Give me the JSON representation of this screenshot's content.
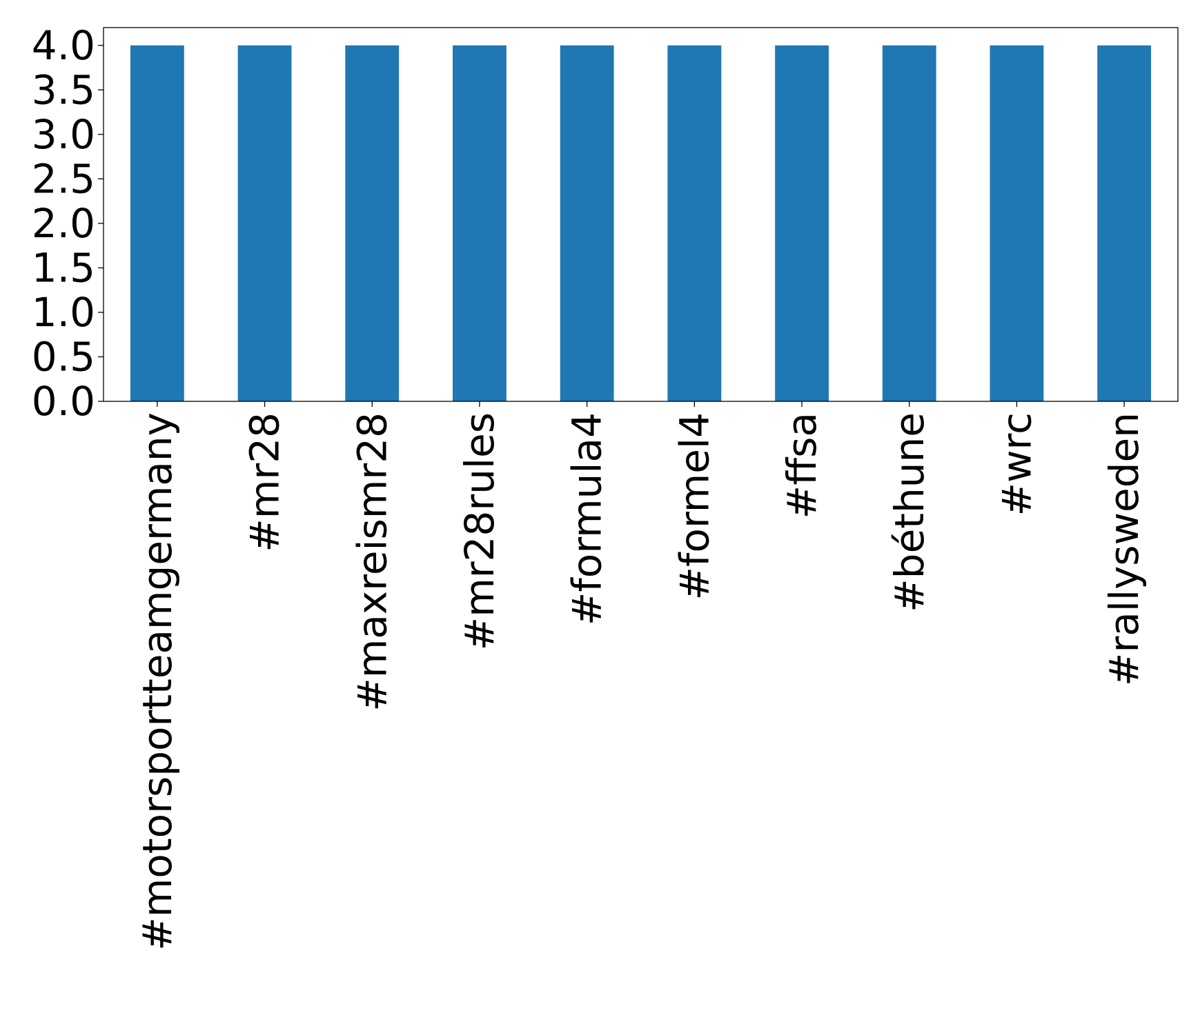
{
  "chart_data": {
    "type": "bar",
    "title": "",
    "xlabel": "",
    "ylabel": "",
    "categories": [
      "#motorsportteamgermany",
      "#mr28",
      "#maxreismr28",
      "#mr28rules",
      "#formula4",
      "#formel4",
      "#ffsa",
      "#béthune",
      "#wrc",
      "#rallysweden"
    ],
    "values": [
      4,
      4,
      4,
      4,
      4,
      4,
      4,
      4,
      4,
      4
    ],
    "ylim": [
      0,
      4.2
    ],
    "yticks": [
      "0.0",
      "0.5",
      "1.0",
      "1.5",
      "2.0",
      "2.5",
      "3.0",
      "3.5",
      "4.0"
    ],
    "grid": false,
    "legend": "none",
    "bar_color": "#1f77b4"
  }
}
